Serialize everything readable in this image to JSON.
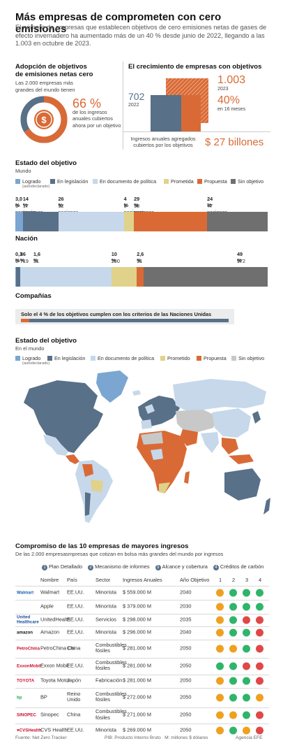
{
  "header": {
    "title": "Más empresas de comprometen con cero emisiones",
    "subtitle": "El número de empresas que establecen objetivos de cero emisiones netas de gases de efecto invernadero ha aumentado más de un 40 % desde junio de 2022, llegando a las 1.003 en octubre de 2023."
  },
  "adoption": {
    "title_line1": "Adopción de objetivos",
    "title_line2": "de emisiones netas cero",
    "desc_line1": "Las 2.000 empresas más",
    "desc_line2": "grandes del mundo tienen",
    "percent": "66 %",
    "percent_value": 66,
    "note": "de los ingresos anuales cubiertos ahora por un objetivo"
  },
  "growth": {
    "title": "El crecimiento de empresas con objetivos",
    "value_2022": "702",
    "year_2022": "2022",
    "value_2023": "1.003",
    "year_2023": "2023",
    "increase": "40%",
    "increase_note": "en 16 meses",
    "revenue_label": "Ingresos anuales agregados cubiertos por los objetivos",
    "revenue_value": "$ 27 billones"
  },
  "colors": {
    "achieved": "#7aa6d1",
    "legislation": "#587088",
    "policy": "#c6d8ea",
    "promised": "#e0d28a",
    "proposed": "#d96a36",
    "none": "#6f6f6f",
    "none_map": "#c8c8c8"
  },
  "status": {
    "title": "Estado del objetivo",
    "scope": "Mundo",
    "legend": {
      "achieved": "Logrado",
      "achieved_note": "(autodeclarado)",
      "legislation": "En legislación",
      "policy": "En documento de política",
      "promised": "Prometida",
      "proposed": "Propuesta",
      "none": "Sin objetivo"
    },
    "world_pcts": [
      "3,0 %",
      "14 %",
      "26 %",
      "4 %",
      "29 %",
      "24 %"
    ],
    "world_counts": [
      "6 naciones",
      "17 naciones",
      "52 naciones",
      "8 naciones",
      "58 naciones",
      "47 naciones"
    ],
    "world_values": [
      3.0,
      14,
      26,
      4,
      29,
      24
    ],
    "nation_label": "Nación",
    "nation_pcts": [
      "0,3 %",
      "1,6 %",
      "36 %",
      "10 %",
      "2,6 %",
      "49 %"
    ],
    "nation_counts": [
      "6",
      "31",
      "719",
      "200",
      "51",
      "972"
    ],
    "nation_values": [
      0.3,
      1.6,
      36,
      10,
      2.6,
      49
    ],
    "companies_label": "Compañías",
    "un_note": "Solo el 4 % de los objetivos cumplen con los criterios de las Naciones Unidas"
  },
  "map": {
    "title": "Estado del objetivo",
    "scope": "En el mundo",
    "legend": {
      "achieved": "Logrado",
      "achieved_note": "(autodeclarado)",
      "legislation": "En legislación",
      "policy": "En documento de política",
      "promised": "Prometido",
      "proposed": "Propuesta",
      "none": "Sin objetivo"
    }
  },
  "top10": {
    "title": "Compromiso de las 10 empresas de mayores ingresos",
    "subtitle": "De las 2.000 empresasmpresas que cotizan en bolsa más grandes del mundo por ingresos",
    "criteria": [
      {
        "num": "1",
        "label": "Plan Detallado"
      },
      {
        "num": "2",
        "label": "Mecanismo de informes"
      },
      {
        "num": "3",
        "label": "Alcance y cobertura"
      },
      {
        "num": "4",
        "label": "Créditos de carbón"
      }
    ],
    "columns": {
      "name": "Nombre",
      "country": "País",
      "sector": "Sector",
      "revenue": "Ingresos Anuales",
      "year": "Año Objetivo",
      "c1": "1",
      "c2": "2",
      "c3": "3",
      "c4": "4"
    },
    "dot_colors": {
      "o": "#f0a020",
      "g": "#2fb56a",
      "r": "#e04848"
    },
    "rows": [
      {
        "logo": "Walmart",
        "logo_color": "#1a5fb4",
        "name": "Walmart",
        "country": "EE.UU.",
        "sector": "Minorista",
        "revenue": "$ 559.000 M",
        "year": "2040",
        "dots": [
          "o",
          "g",
          "g",
          "g"
        ]
      },
      {
        "logo": "",
        "logo_color": "#888888",
        "name": "Apple",
        "country": "EE.UU.",
        "sector": "Minorista",
        "revenue": "$ 379.000 M",
        "year": "2030",
        "dots": [
          "o",
          "g",
          "g",
          "g"
        ]
      },
      {
        "logo": "United Healthcare",
        "logo_color": "#1a4f9c",
        "name": "UnitedHealth",
        "country": "EE.UU.",
        "sector": "Servicios",
        "revenue": "$ 298.000 M",
        "year": "2035",
        "dots": [
          "o",
          "g",
          "r",
          "r"
        ]
      },
      {
        "logo": "amazon",
        "logo_color": "#111111",
        "name": "Amazon",
        "country": "EE.UU.",
        "sector": "Minorista",
        "revenue": "$ 296.000 M",
        "year": "2040",
        "dots": [
          "o",
          "g",
          "g",
          "r"
        ]
      },
      {
        "logo": "PetroChina",
        "logo_color": "#c8102e",
        "name": "PetroChina Co",
        "country": "China",
        "sector": "Combustibles fósiles",
        "revenue": "$ 281.000 M",
        "year": "2050",
        "dots": [
          "o",
          "o",
          "g",
          "r"
        ]
      },
      {
        "logo": "ExxonMobil",
        "logo_color": "#d3102e",
        "name": "Exxon Mobil",
        "country": "EE.UU.",
        "sector": "Combustibles fósiles",
        "revenue": "$ 281.000 M",
        "year": "2050",
        "dots": [
          "g",
          "g",
          "r",
          "r"
        ]
      },
      {
        "logo": "TOYOTA",
        "logo_color": "#d3102e",
        "name": "Toyota Motor",
        "country": "Japón",
        "sector": "Fabricación",
        "revenue": "$ 281.000 M",
        "year": "2050",
        "dots": [
          "o",
          "g",
          "g",
          "r"
        ]
      },
      {
        "logo": "bp",
        "logo_color": "#2fa84f",
        "name": "BP",
        "country": "Reino Unido",
        "sector": "Combustibles fósiles",
        "revenue": "$ 272.000 M",
        "year": "2050",
        "dots": [
          "o",
          "g",
          "g",
          "o"
        ]
      },
      {
        "logo": "SINOPEC",
        "logo_color": "#c8102e",
        "name": "Sinopec",
        "country": "China",
        "sector": "Combustibles fósiles",
        "revenue": "$ 271.000 M",
        "year": "2050",
        "dots": [
          "o",
          "o",
          "g",
          "r"
        ]
      },
      {
        "logo": "♥CVSHealth",
        "logo_color": "#c8102e",
        "name": "CVS Health",
        "country": "EE.UU.",
        "sector": "Minorista",
        "revenue": "$ 269.000 M",
        "year": "2050",
        "dots": [
          "o",
          "g",
          "o",
          "r"
        ]
      }
    ]
  },
  "footer": {
    "source": "Fuente: Net Zero Tracker",
    "note": "PIB: Producto Interno Bruto   M: millones $ dólares",
    "agency": "Agencia EFE"
  }
}
